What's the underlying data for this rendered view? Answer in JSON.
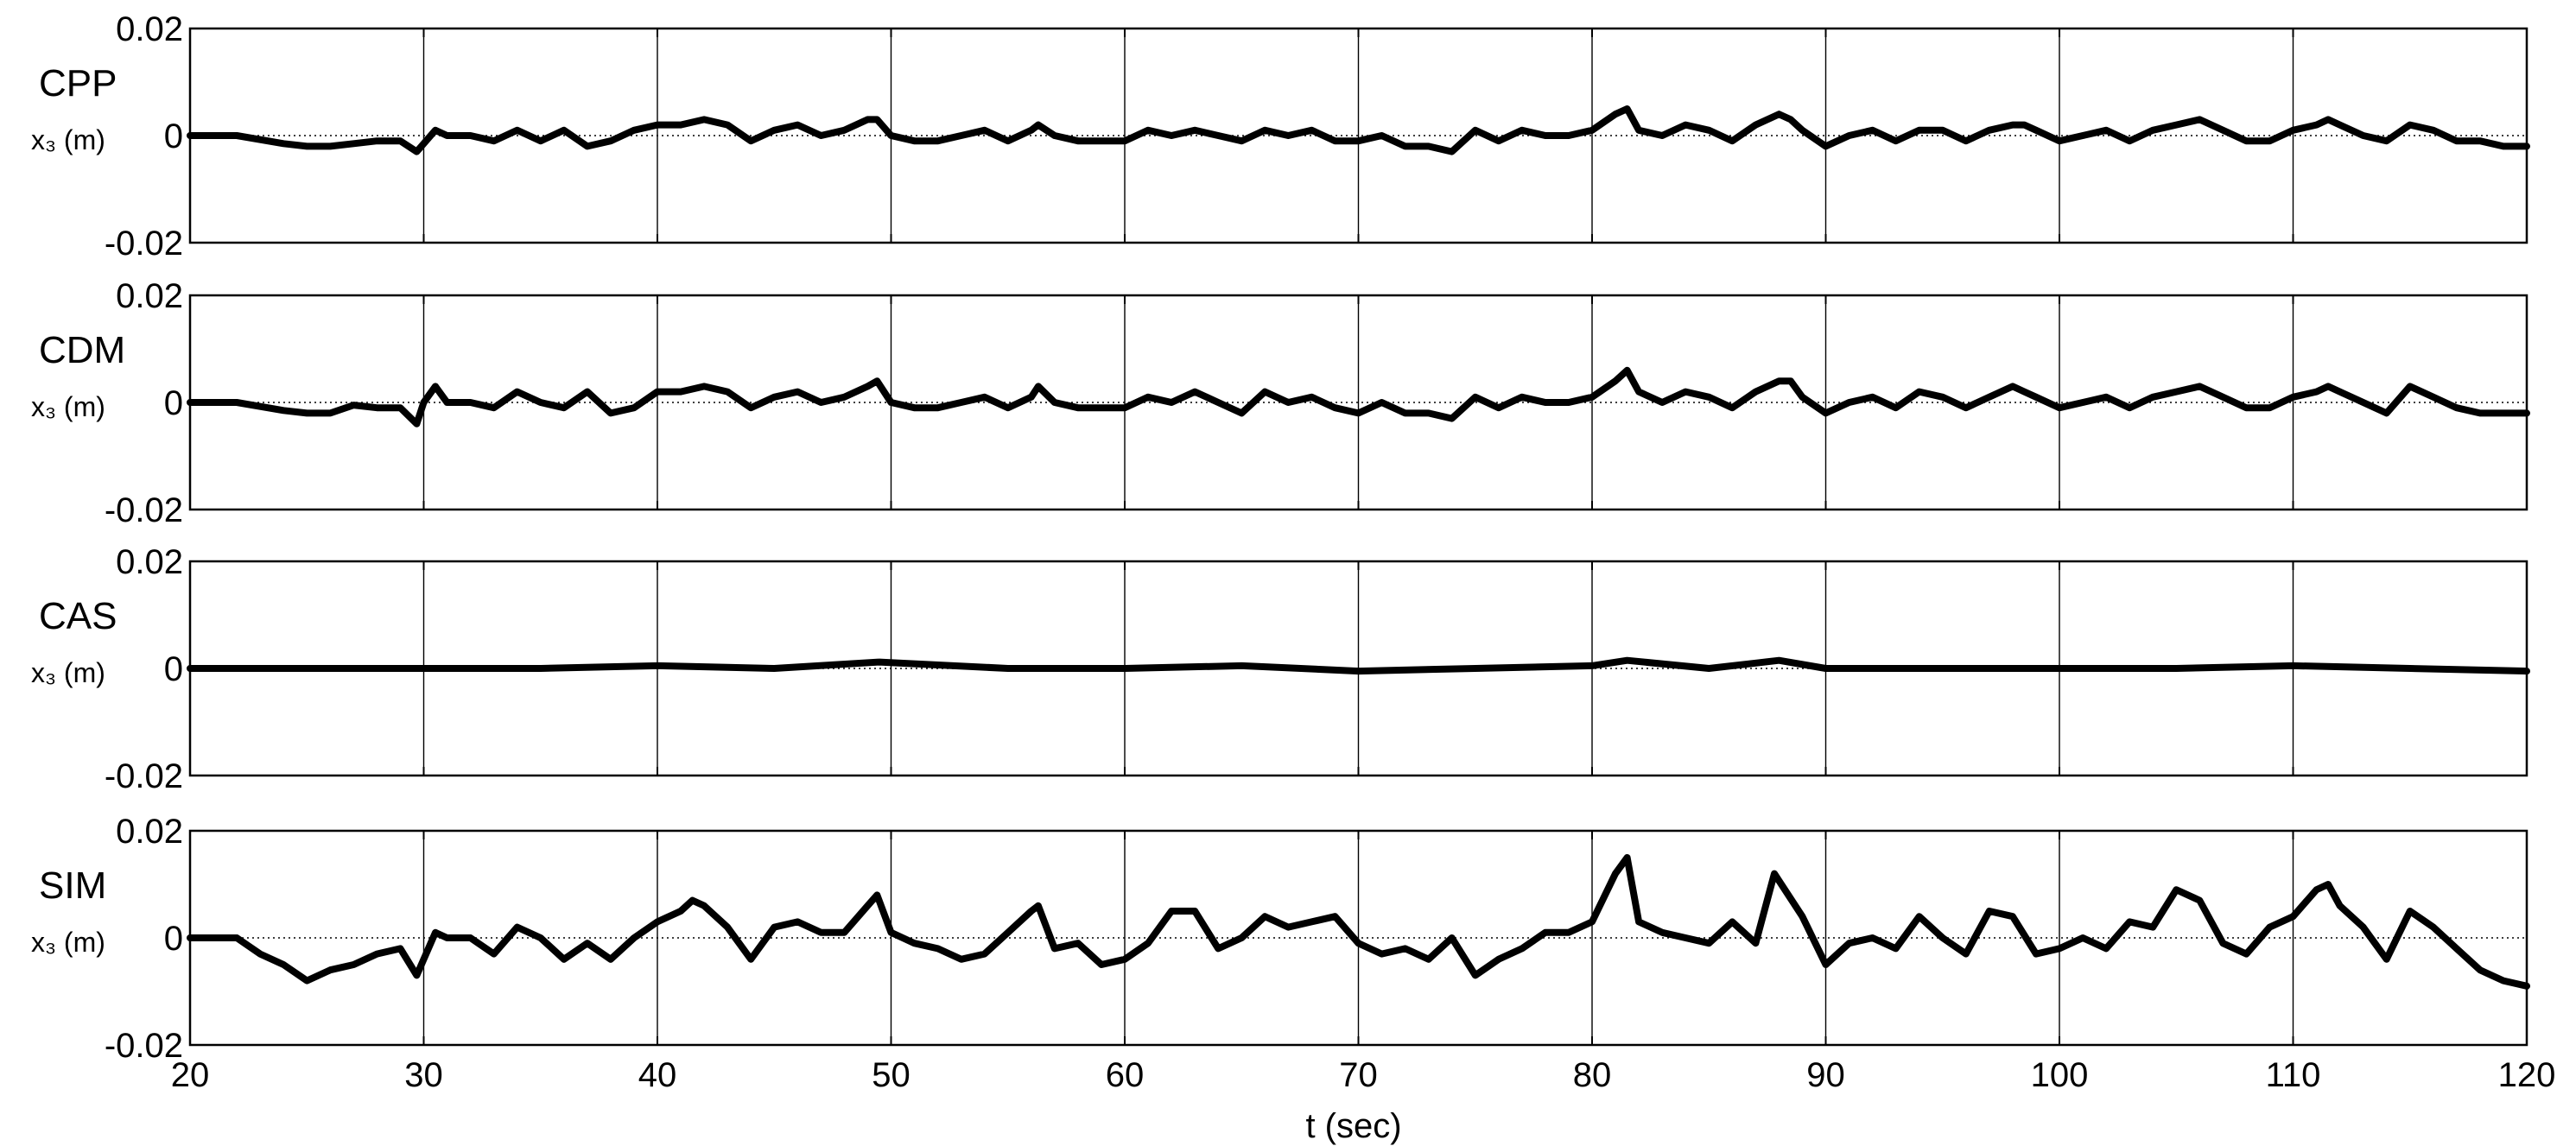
{
  "chart_data": {
    "type": "line",
    "xlabel": "t (sec)",
    "x_ticks": [
      "20",
      "30",
      "40",
      "50",
      "60",
      "70",
      "80",
      "90",
      "100",
      "110",
      "120"
    ],
    "xlim": [
      20,
      120
    ],
    "grid": "vertical lines at x ticks, dotted zero line",
    "panels": [
      {
        "name": "CPP",
        "ylabel": "x₃ (m)",
        "ylim": [
          -0.02,
          0.02
        ],
        "y_ticks": [
          "0.02",
          "0",
          "-0.02"
        ],
        "x": [
          20,
          22,
          24,
          25,
          26,
          27,
          28,
          29,
          29.7,
          30.5,
          31,
          32,
          33,
          34,
          35,
          36,
          37,
          38,
          39,
          40,
          41,
          42,
          43,
          44,
          45,
          46,
          47,
          48,
          49,
          49.4,
          50,
          51,
          52,
          53,
          54,
          55,
          56,
          56.3,
          57,
          58,
          59,
          60,
          61,
          62,
          63,
          64,
          65,
          66,
          67,
          68,
          69,
          70,
          71,
          72,
          73,
          74,
          75,
          76,
          77,
          78,
          79,
          80,
          81,
          81.5,
          82,
          83,
          84,
          85,
          86,
          87,
          88,
          88.5,
          89,
          90,
          91,
          92,
          93,
          94,
          95,
          96,
          97,
          98,
          98.5,
          99,
          100,
          101,
          102,
          103,
          104,
          105,
          106,
          107,
          108,
          109,
          110,
          111,
          111.5,
          112,
          113,
          114,
          115,
          116,
          117,
          118,
          119,
          120
        ],
        "y": [
          0.0,
          0.0,
          -0.0015,
          -0.002,
          -0.002,
          -0.0015,
          -0.001,
          -0.001,
          -0.003,
          0.001,
          0.0,
          0.0,
          -0.001,
          0.001,
          -0.001,
          0.001,
          -0.002,
          -0.001,
          0.001,
          0.002,
          0.002,
          0.003,
          0.002,
          -0.001,
          0.001,
          0.002,
          0.0,
          0.001,
          0.003,
          0.003,
          0.0,
          -0.001,
          -0.001,
          0.0,
          0.001,
          -0.001,
          0.001,
          0.002,
          0.0,
          -0.001,
          -0.001,
          -0.001,
          0.001,
          0.0,
          0.001,
          0.0,
          -0.001,
          0.001,
          0.0,
          0.001,
          -0.001,
          -0.001,
          0.0,
          -0.002,
          -0.002,
          -0.003,
          0.001,
          -0.001,
          0.001,
          0.0,
          0.0,
          0.001,
          0.004,
          0.005,
          0.001,
          0.0,
          0.002,
          0.001,
          -0.001,
          0.002,
          0.004,
          0.003,
          0.001,
          -0.002,
          0.0,
          0.001,
          -0.001,
          0.001,
          0.001,
          -0.001,
          0.001,
          0.002,
          0.002,
          0.001,
          -0.001,
          0.0,
          0.001,
          -0.001,
          0.001,
          0.002,
          0.003,
          0.001,
          -0.001,
          -0.001,
          0.001,
          0.002,
          0.003,
          0.002,
          0.0,
          -0.001,
          0.002,
          0.001,
          -0.001,
          -0.001,
          -0.002,
          -0.002
        ]
      },
      {
        "name": "CDM",
        "ylabel": "x₃ (m)",
        "ylim": [
          -0.02,
          0.02
        ],
        "y_ticks": [
          "0.02",
          "0",
          "-0.02"
        ],
        "x": [
          20,
          22,
          24,
          25,
          26,
          27,
          28,
          29,
          29.7,
          30,
          30.5,
          31,
          32,
          33,
          34,
          35,
          36,
          37,
          38,
          39,
          40,
          41,
          42,
          43,
          44,
          45,
          46,
          47,
          48,
          49,
          49.4,
          50,
          51,
          52,
          53,
          54,
          55,
          56,
          56.3,
          57,
          58,
          59,
          60,
          61,
          62,
          63,
          64,
          65,
          66,
          67,
          68,
          69,
          70,
          71,
          72,
          73,
          74,
          75,
          76,
          77,
          78,
          79,
          80,
          81,
          81.5,
          82,
          83,
          84,
          85,
          86,
          87,
          88,
          88.5,
          89,
          90,
          91,
          92,
          93,
          94,
          95,
          96,
          97,
          98,
          98.5,
          99,
          100,
          101,
          102,
          103,
          104,
          105,
          106,
          107,
          108,
          109,
          110,
          111,
          111.5,
          112,
          113,
          114,
          115,
          116,
          117,
          118,
          119,
          120
        ],
        "y": [
          0.0,
          0.0,
          -0.0015,
          -0.002,
          -0.002,
          -0.0005,
          -0.001,
          -0.001,
          -0.004,
          0.0,
          0.003,
          0.0,
          0.0,
          -0.001,
          0.002,
          0.0,
          -0.001,
          0.002,
          -0.002,
          -0.001,
          0.002,
          0.002,
          0.003,
          0.002,
          -0.001,
          0.001,
          0.002,
          0.0,
          0.001,
          0.003,
          0.004,
          0.0,
          -0.001,
          -0.001,
          0.0,
          0.001,
          -0.001,
          0.001,
          0.003,
          0.0,
          -0.001,
          -0.001,
          -0.001,
          0.001,
          0.0,
          0.002,
          0.0,
          -0.002,
          0.002,
          0.0,
          0.001,
          -0.001,
          -0.002,
          0.0,
          -0.002,
          -0.002,
          -0.003,
          0.001,
          -0.001,
          0.001,
          0.0,
          0.0,
          0.001,
          0.004,
          0.006,
          0.002,
          0.0,
          0.002,
          0.001,
          -0.001,
          0.002,
          0.004,
          0.004,
          0.001,
          -0.002,
          0.0,
          0.001,
          -0.001,
          0.002,
          0.001,
          -0.001,
          0.001,
          0.003,
          0.002,
          0.001,
          -0.001,
          0.0,
          0.001,
          -0.001,
          0.001,
          0.002,
          0.003,
          0.001,
          -0.001,
          -0.001,
          0.001,
          0.002,
          0.003,
          0.002,
          0.0,
          -0.002,
          0.003,
          0.001,
          -0.001,
          -0.002,
          -0.002,
          -0.002
        ]
      },
      {
        "name": "CAS",
        "ylabel": "x₃ (m)",
        "ylim": [
          -0.02,
          0.02
        ],
        "y_ticks": [
          "0.02",
          "0",
          "-0.02"
        ],
        "x": [
          20,
          25,
          30,
          35,
          40,
          45,
          49.5,
          55,
          60,
          65,
          70,
          75,
          80,
          81.5,
          85,
          88,
          90,
          95,
          100,
          105,
          110,
          115,
          120
        ],
        "y": [
          0.0,
          0.0,
          0.0,
          0.0,
          0.0005,
          0.0,
          0.0012,
          0.0,
          0.0,
          0.0005,
          -0.0005,
          0.0,
          0.0005,
          0.0015,
          0.0,
          0.0015,
          0.0,
          0.0,
          0.0,
          0.0,
          0.0005,
          0.0,
          -0.0005
        ]
      },
      {
        "name": "SIM",
        "ylabel": "x₃ (m)",
        "ylim": [
          -0.02,
          0.02
        ],
        "y_ticks": [
          "0.02",
          "0",
          "-0.02"
        ],
        "x": [
          20,
          21,
          22,
          23,
          24,
          25,
          26,
          27,
          28,
          29,
          29.7,
          30.5,
          31,
          32,
          33,
          34,
          35,
          36,
          37,
          38,
          39,
          40,
          41,
          41.5,
          42,
          43,
          44,
          45,
          46,
          47,
          48,
          49,
          49.4,
          50,
          51,
          52,
          53,
          54,
          55,
          56,
          56.3,
          57,
          58,
          59,
          60,
          61,
          62,
          63,
          64,
          65,
          66,
          67,
          68,
          69,
          70,
          71,
          72,
          73,
          74,
          75,
          76,
          77,
          78,
          79,
          80,
          81,
          81.5,
          82,
          83,
          84,
          85,
          86,
          87,
          87.8,
          89,
          90,
          91,
          92,
          93,
          94,
          95,
          96,
          97,
          98,
          99,
          100,
          101,
          102,
          103,
          104,
          105,
          106,
          107,
          108,
          109,
          110,
          111,
          111.5,
          112,
          113,
          114,
          115,
          116,
          117,
          118,
          119,
          120
        ],
        "y": [
          0.0,
          0.0,
          0.0,
          -0.003,
          -0.005,
          -0.008,
          -0.006,
          -0.005,
          -0.003,
          -0.002,
          -0.007,
          0.001,
          0.0,
          0.0,
          -0.003,
          0.002,
          0.0,
          -0.004,
          -0.001,
          -0.004,
          0.0,
          0.003,
          0.005,
          0.007,
          0.006,
          0.002,
          -0.004,
          0.002,
          0.003,
          0.001,
          0.001,
          0.006,
          0.008,
          0.001,
          -0.001,
          -0.002,
          -0.004,
          -0.003,
          0.001,
          0.005,
          0.006,
          -0.002,
          -0.001,
          -0.005,
          -0.004,
          -0.001,
          0.005,
          0.005,
          -0.002,
          0.0,
          0.004,
          0.002,
          0.003,
          0.004,
          -0.001,
          -0.003,
          -0.002,
          -0.004,
          0.0,
          -0.007,
          -0.004,
          -0.002,
          0.001,
          0.001,
          0.003,
          0.012,
          0.015,
          0.003,
          0.001,
          0.0,
          -0.001,
          0.003,
          -0.001,
          0.012,
          0.004,
          -0.005,
          -0.001,
          0.0,
          -0.002,
          0.004,
          0.0,
          -0.003,
          0.005,
          0.004,
          -0.003,
          -0.002,
          0.0,
          -0.002,
          0.003,
          0.002,
          0.009,
          0.007,
          -0.001,
          -0.003,
          0.002,
          0.004,
          0.009,
          0.01,
          0.006,
          0.002,
          -0.004,
          0.005,
          0.002,
          -0.002,
          -0.006,
          -0.008,
          -0.009
        ]
      }
    ]
  }
}
